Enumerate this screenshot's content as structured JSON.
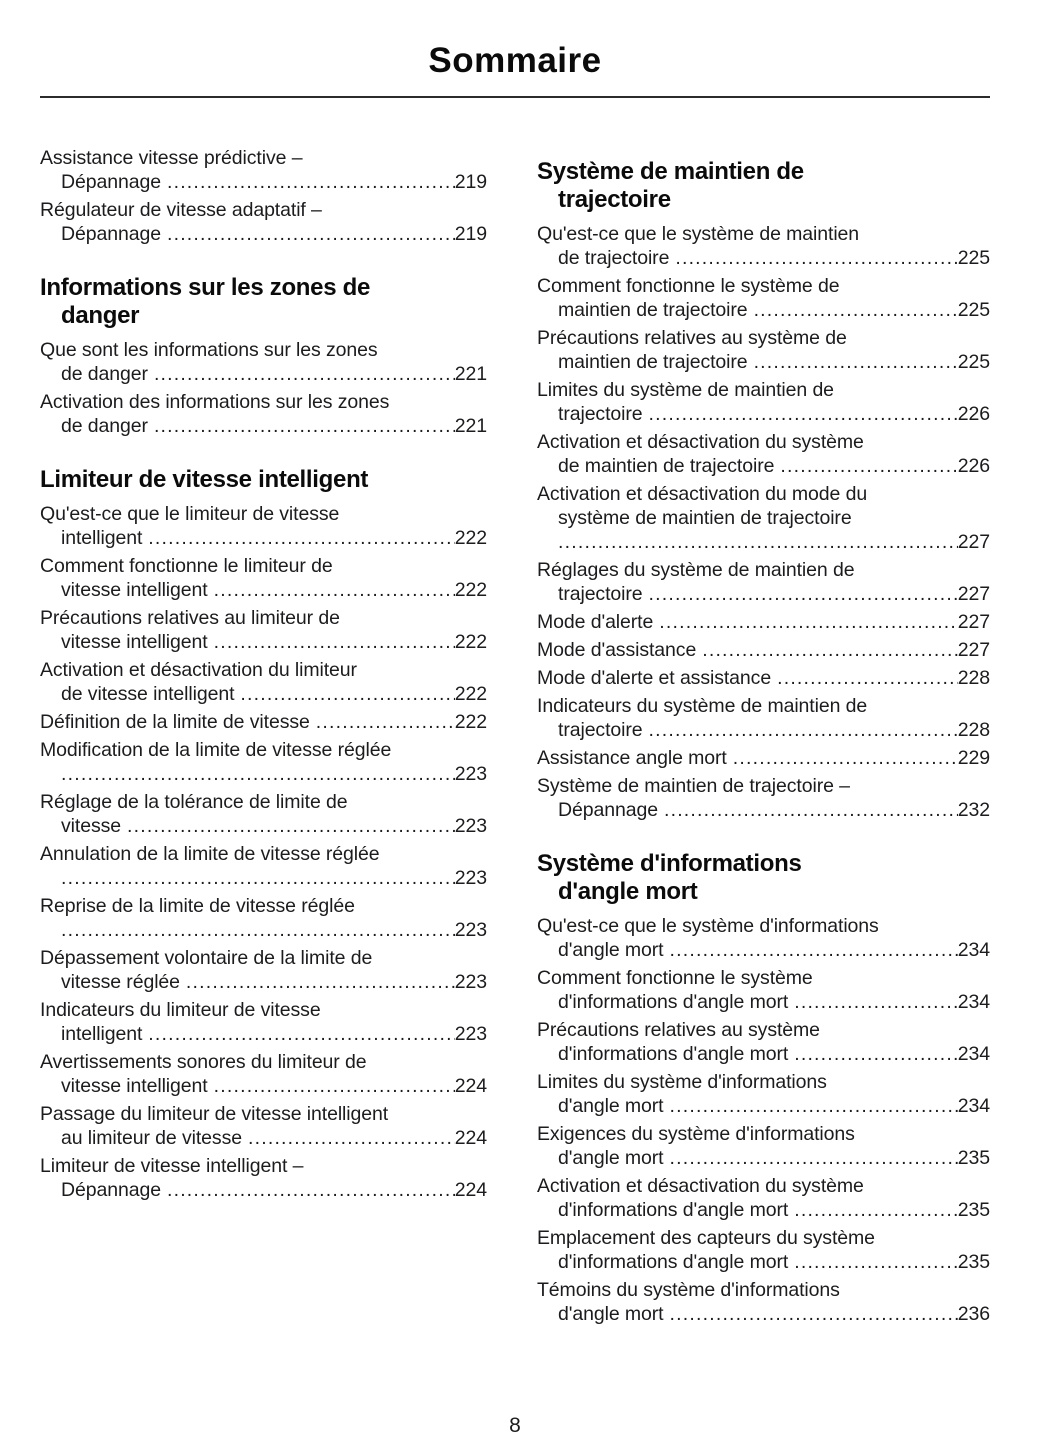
{
  "page": {
    "title": "Sommaire",
    "page_number": "8"
  },
  "colors": {
    "ink": "#1c1c1e",
    "heading_ink": "#0b0b0c",
    "rule": "#2b2b2b"
  },
  "columns": {
    "left": [
      {
        "type": "entry",
        "lines": [
          "Assistance vitesse prédictive –",
          "Dépannage"
        ],
        "page": "219"
      },
      {
        "type": "entry",
        "lines": [
          "Régulateur de vitesse adaptatif –",
          "Dépannage"
        ],
        "page": "219"
      },
      {
        "type": "heading",
        "lines": [
          "Informations sur les zones de",
          "danger"
        ]
      },
      {
        "type": "entry",
        "lines": [
          "Que sont les informations sur les zones",
          "de danger"
        ],
        "page": "221"
      },
      {
        "type": "entry",
        "lines": [
          "Activation des informations sur les zones",
          "de danger"
        ],
        "page": "221"
      },
      {
        "type": "heading",
        "lines": [
          "Limiteur de vitesse intelligent"
        ]
      },
      {
        "type": "entry",
        "lines": [
          "Qu'est-ce que le limiteur de vitesse",
          "intelligent"
        ],
        "page": "222"
      },
      {
        "type": "entry",
        "lines": [
          "Comment fonctionne le limiteur de",
          "vitesse intelligent"
        ],
        "page": "222"
      },
      {
        "type": "entry",
        "lines": [
          "Précautions relatives au limiteur de",
          "vitesse intelligent"
        ],
        "page": "222"
      },
      {
        "type": "entry",
        "lines": [
          "Activation et désactivation du limiteur",
          "de vitesse intelligent"
        ],
        "page": "222"
      },
      {
        "type": "entry",
        "lines": [
          "Définition de la limite de vitesse"
        ],
        "page": "222"
      },
      {
        "type": "entry",
        "lines": [
          "Modification de la limite de vitesse réglée",
          ""
        ],
        "page": "223"
      },
      {
        "type": "entry",
        "lines": [
          "Réglage de la tolérance de limite de",
          "vitesse"
        ],
        "page": "223"
      },
      {
        "type": "entry",
        "lines": [
          "Annulation de la limite de vitesse réglée",
          ""
        ],
        "page": "223"
      },
      {
        "type": "entry",
        "lines": [
          "Reprise de la limite de vitesse réglée",
          ""
        ],
        "page": "223"
      },
      {
        "type": "entry",
        "lines": [
          "Dépassement volontaire de la limite de",
          "vitesse réglée"
        ],
        "page": "223"
      },
      {
        "type": "entry",
        "lines": [
          "Indicateurs du limiteur de vitesse",
          "intelligent"
        ],
        "page": "223"
      },
      {
        "type": "entry",
        "lines": [
          "Avertissements sonores du limiteur de",
          "vitesse intelligent"
        ],
        "page": "224"
      },
      {
        "type": "entry",
        "lines": [
          "Passage du limiteur de vitesse intelligent",
          "au limiteur de vitesse"
        ],
        "page": "224"
      },
      {
        "type": "entry",
        "lines": [
          "Limiteur de vitesse intelligent –",
          "Dépannage"
        ],
        "page": "224"
      }
    ],
    "right": [
      {
        "type": "heading",
        "lines": [
          "Système de maintien de",
          "trajectoire"
        ]
      },
      {
        "type": "entry",
        "lines": [
          "Qu'est-ce que le système de maintien",
          "de trajectoire"
        ],
        "page": "225"
      },
      {
        "type": "entry",
        "lines": [
          "Comment fonctionne le système de",
          "maintien de trajectoire"
        ],
        "page": "225"
      },
      {
        "type": "entry",
        "lines": [
          "Précautions relatives au système de",
          "maintien de trajectoire"
        ],
        "page": "225"
      },
      {
        "type": "entry",
        "lines": [
          "Limites du système de maintien de",
          "trajectoire"
        ],
        "page": "226"
      },
      {
        "type": "entry",
        "lines": [
          "Activation et désactivation du système",
          "de maintien de trajectoire"
        ],
        "page": "226"
      },
      {
        "type": "entry",
        "lines": [
          "Activation et désactivation du mode du",
          "système de maintien de trajectoire",
          ""
        ],
        "page": "227"
      },
      {
        "type": "entry",
        "lines": [
          "Réglages du système de maintien de",
          "trajectoire"
        ],
        "page": "227"
      },
      {
        "type": "entry",
        "lines": [
          "Mode d'alerte"
        ],
        "page": "227"
      },
      {
        "type": "entry",
        "lines": [
          "Mode d'assistance"
        ],
        "page": "227"
      },
      {
        "type": "entry",
        "lines": [
          "Mode d'alerte et assistance"
        ],
        "page": "228"
      },
      {
        "type": "entry",
        "lines": [
          "Indicateurs du système de maintien de",
          "trajectoire"
        ],
        "page": "228"
      },
      {
        "type": "entry",
        "lines": [
          "Assistance angle mort"
        ],
        "page": "229"
      },
      {
        "type": "entry",
        "lines": [
          "Système de maintien de trajectoire –",
          "Dépannage"
        ],
        "page": "232"
      },
      {
        "type": "heading",
        "lines": [
          "Système d'informations",
          "d'angle mort"
        ]
      },
      {
        "type": "entry",
        "lines": [
          "Qu'est-ce que le système d'informations",
          "d'angle mort"
        ],
        "page": "234"
      },
      {
        "type": "entry",
        "lines": [
          "Comment fonctionne le système",
          "d'informations d'angle mort"
        ],
        "page": "234"
      },
      {
        "type": "entry",
        "lines": [
          "Précautions relatives au système",
          "d'informations d'angle mort"
        ],
        "page": "234"
      },
      {
        "type": "entry",
        "lines": [
          "Limites du système d'informations",
          "d'angle mort"
        ],
        "page": "234"
      },
      {
        "type": "entry",
        "lines": [
          "Exigences du système d'informations",
          "d'angle mort"
        ],
        "page": "235"
      },
      {
        "type": "entry",
        "lines": [
          "Activation et désactivation du système",
          "d'informations d'angle mort"
        ],
        "page": "235"
      },
      {
        "type": "entry",
        "lines": [
          "Emplacement des capteurs du système",
          "d'informations d'angle mort"
        ],
        "page": "235"
      },
      {
        "type": "entry",
        "lines": [
          "Témoins du système d'informations",
          "d'angle mort"
        ],
        "page": "236"
      }
    ]
  }
}
